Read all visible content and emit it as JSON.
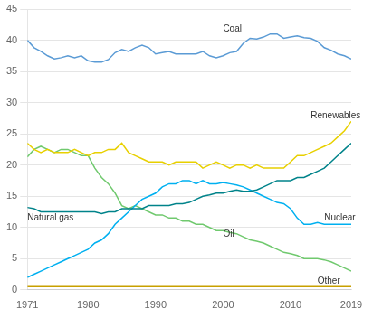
{
  "chart_data": {
    "type": "line",
    "x": [
      1971,
      1972,
      1973,
      1974,
      1975,
      1976,
      1977,
      1978,
      1979,
      1980,
      1981,
      1982,
      1983,
      1984,
      1985,
      1986,
      1987,
      1988,
      1989,
      1990,
      1991,
      1992,
      1993,
      1994,
      1995,
      1996,
      1997,
      1998,
      1999,
      2000,
      2001,
      2002,
      2003,
      2004,
      2005,
      2006,
      2007,
      2008,
      2009,
      2010,
      2011,
      2012,
      2013,
      2014,
      2015,
      2016,
      2017,
      2018,
      2019
    ],
    "series": [
      {
        "name": "Coal",
        "color": "#5b9bd5",
        "values": [
          40.0,
          38.8,
          38.2,
          37.5,
          37.0,
          37.2,
          37.5,
          37.2,
          37.5,
          36.7,
          36.5,
          36.5,
          36.9,
          38.0,
          38.5,
          38.2,
          38.8,
          39.2,
          38.8,
          37.8,
          38.0,
          38.2,
          37.8,
          37.8,
          37.8,
          37.8,
          38.2,
          37.5,
          37.2,
          37.5,
          38.0,
          38.2,
          39.5,
          40.3,
          40.2,
          40.5,
          41.0,
          41.0,
          40.3,
          40.5,
          40.7,
          40.4,
          40.3,
          39.8,
          38.8,
          38.4,
          37.8,
          37.5,
          37.0
        ]
      },
      {
        "name": "Renewables",
        "color": "#e8d000",
        "values": [
          23.5,
          22.5,
          22.0,
          22.5,
          22.0,
          22.0,
          22.0,
          22.5,
          22.0,
          21.5,
          22.0,
          22.0,
          22.5,
          22.5,
          23.5,
          22.0,
          21.5,
          21.0,
          20.5,
          20.5,
          20.5,
          20.0,
          20.5,
          20.5,
          20.5,
          20.5,
          19.5,
          20.0,
          20.5,
          20.0,
          19.5,
          20.0,
          20.0,
          19.5,
          20.0,
          19.5,
          19.5,
          19.5,
          19.5,
          20.5,
          21.5,
          21.5,
          22.0,
          22.5,
          23.0,
          23.5,
          24.5,
          25.5,
          27.0
        ]
      },
      {
        "name": "Natural gas",
        "color": "#00838a",
        "values": [
          13.2,
          13.0,
          12.5,
          12.5,
          12.5,
          12.5,
          12.5,
          12.5,
          12.5,
          12.5,
          12.5,
          12.2,
          12.5,
          12.5,
          13.0,
          13.0,
          13.0,
          13.0,
          13.5,
          13.5,
          13.5,
          13.5,
          13.8,
          13.8,
          14.0,
          14.5,
          15.0,
          15.2,
          15.5,
          15.5,
          15.8,
          16.0,
          15.8,
          15.8,
          16.0,
          16.5,
          17.0,
          17.5,
          17.5,
          17.5,
          18.0,
          18.0,
          18.5,
          19.0,
          19.5,
          20.5,
          21.5,
          22.5,
          23.5
        ]
      },
      {
        "name": "Nuclear",
        "color": "#00b0f0",
        "values": [
          2.0,
          2.5,
          3.0,
          3.5,
          4.0,
          4.5,
          5.0,
          5.5,
          6.0,
          6.5,
          7.5,
          8.0,
          9.0,
          10.5,
          11.5,
          12.5,
          13.5,
          14.5,
          15.0,
          15.5,
          16.5,
          17.0,
          17.0,
          17.5,
          17.5,
          17.0,
          17.5,
          17.0,
          17.0,
          17.2,
          17.0,
          16.8,
          16.5,
          16.0,
          15.5,
          15.0,
          14.5,
          14.0,
          13.8,
          13.0,
          11.5,
          10.5,
          10.5,
          10.8,
          10.5,
          10.5,
          10.5,
          10.5,
          10.5
        ]
      },
      {
        "name": "Oil",
        "color": "#70c96e",
        "values": [
          21.3,
          22.5,
          23.0,
          22.5,
          22.0,
          22.5,
          22.5,
          22.0,
          21.5,
          21.5,
          19.5,
          18.0,
          17.0,
          15.5,
          13.5,
          13.0,
          13.5,
          13.0,
          12.5,
          12.0,
          12.0,
          11.5,
          11.5,
          11.0,
          11.0,
          10.5,
          10.5,
          10.0,
          9.5,
          9.5,
          9.2,
          9.0,
          8.5,
          8.0,
          7.8,
          7.5,
          7.0,
          6.5,
          6.0,
          5.8,
          5.5,
          5.0,
          5.0,
          5.0,
          4.8,
          4.5,
          4.0,
          3.5,
          3.0
        ]
      },
      {
        "name": "Other",
        "color": "#c8a000",
        "values": [
          0.5,
          0.5,
          0.5,
          0.5,
          0.5,
          0.5,
          0.5,
          0.5,
          0.5,
          0.5,
          0.5,
          0.5,
          0.5,
          0.5,
          0.5,
          0.5,
          0.5,
          0.5,
          0.5,
          0.5,
          0.5,
          0.5,
          0.5,
          0.5,
          0.5,
          0.5,
          0.5,
          0.5,
          0.5,
          0.5,
          0.5,
          0.5,
          0.5,
          0.5,
          0.5,
          0.5,
          0.5,
          0.5,
          0.5,
          0.5,
          0.5,
          0.5,
          0.5,
          0.5,
          0.5,
          0.5,
          0.5,
          0.5,
          0.5
        ]
      }
    ],
    "annotations": [
      {
        "text": "Coal",
        "x": 2000,
        "y": 41.0
      },
      {
        "text": "Natural gas",
        "x": 1971,
        "y": 10.8
      },
      {
        "text": "Oil",
        "x": 2000,
        "y": 8.2
      },
      {
        "text": "Nuclear",
        "x": 2015,
        "y": 10.8
      },
      {
        "text": "Renewables",
        "x": 2013,
        "y": 27.2
      },
      {
        "text": "Other",
        "x": 2014,
        "y": 0.6
      }
    ],
    "xlim": [
      1971,
      2019
    ],
    "xticks": [
      1971,
      1980,
      1990,
      2000,
      2010,
      2019
    ],
    "ylim": [
      0,
      45
    ],
    "yticks": [
      0,
      5,
      10,
      15,
      20,
      25,
      30,
      35,
      40,
      45
    ],
    "grid": "y"
  }
}
